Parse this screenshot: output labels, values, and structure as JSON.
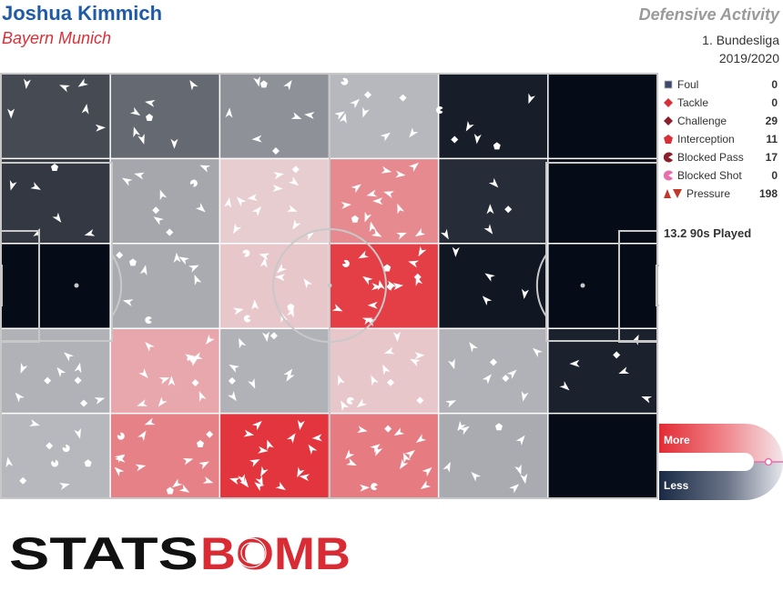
{
  "header": {
    "player": "Joshua Kimmich",
    "team": "Bayern Munich",
    "title": "Defensive Activity",
    "league": "1. Bundesliga",
    "season": "2019/2020"
  },
  "legend": [
    {
      "label": "Foul",
      "count": "0",
      "icon": "square-icon",
      "color": "#3b4a6b"
    },
    {
      "label": "Tackle",
      "count": "0",
      "icon": "diamond-icon",
      "color": "#d93038"
    },
    {
      "label": "Challenge",
      "count": "29",
      "icon": "diamond-icon",
      "color": "#8b1f2a"
    },
    {
      "label": "Interception",
      "count": "11",
      "icon": "pentagon-icon",
      "color": "#d93038"
    },
    {
      "label": "Blocked Pass",
      "count": "17",
      "icon": "pacman-icon",
      "color": "#8b1f2a"
    },
    {
      "label": "Blocked Shot",
      "count": "0",
      "icon": "pacman-icon",
      "color": "#e86fae"
    },
    {
      "label": "Pressure",
      "count": "198",
      "icon": "pressure-icon",
      "color": "#c0392b"
    }
  ],
  "played": "13.2 90s Played",
  "scale": {
    "more": "More",
    "less": "Less"
  },
  "logo": {
    "text_left": "STATS",
    "text_right": "BOMB"
  },
  "chart_data": {
    "type": "heatmap",
    "description_rows": "rows top to bottom, columns left to right (attacking direction left to right)",
    "grid": {
      "rows": 5,
      "cols": 6
    },
    "values": [
      [
        -0.72,
        -0.58,
        -0.4,
        -0.22,
        -0.92,
        -1.0
      ],
      [
        -0.8,
        -0.3,
        0.15,
        0.5,
        -0.85,
        -1.0
      ],
      [
        -1.0,
        -0.28,
        0.18,
        0.9,
        -0.95,
        -1.0
      ],
      [
        -0.25,
        0.35,
        -0.25,
        0.18,
        -0.25,
        -0.9
      ],
      [
        -0.22,
        0.55,
        0.95,
        0.58,
        -0.28,
        -1.0
      ]
    ],
    "scale_range": [
      -1,
      1
    ],
    "colors": {
      "more": "#e32b34",
      "neutral": "#e9e9ec",
      "less": "#050c18"
    },
    "event_counts": {
      "Foul": 0,
      "Tackle": 0,
      "Challenge": 29,
      "Interception": 11,
      "Blocked Pass": 17,
      "Blocked Shot": 0,
      "Pressure": 198
    }
  }
}
